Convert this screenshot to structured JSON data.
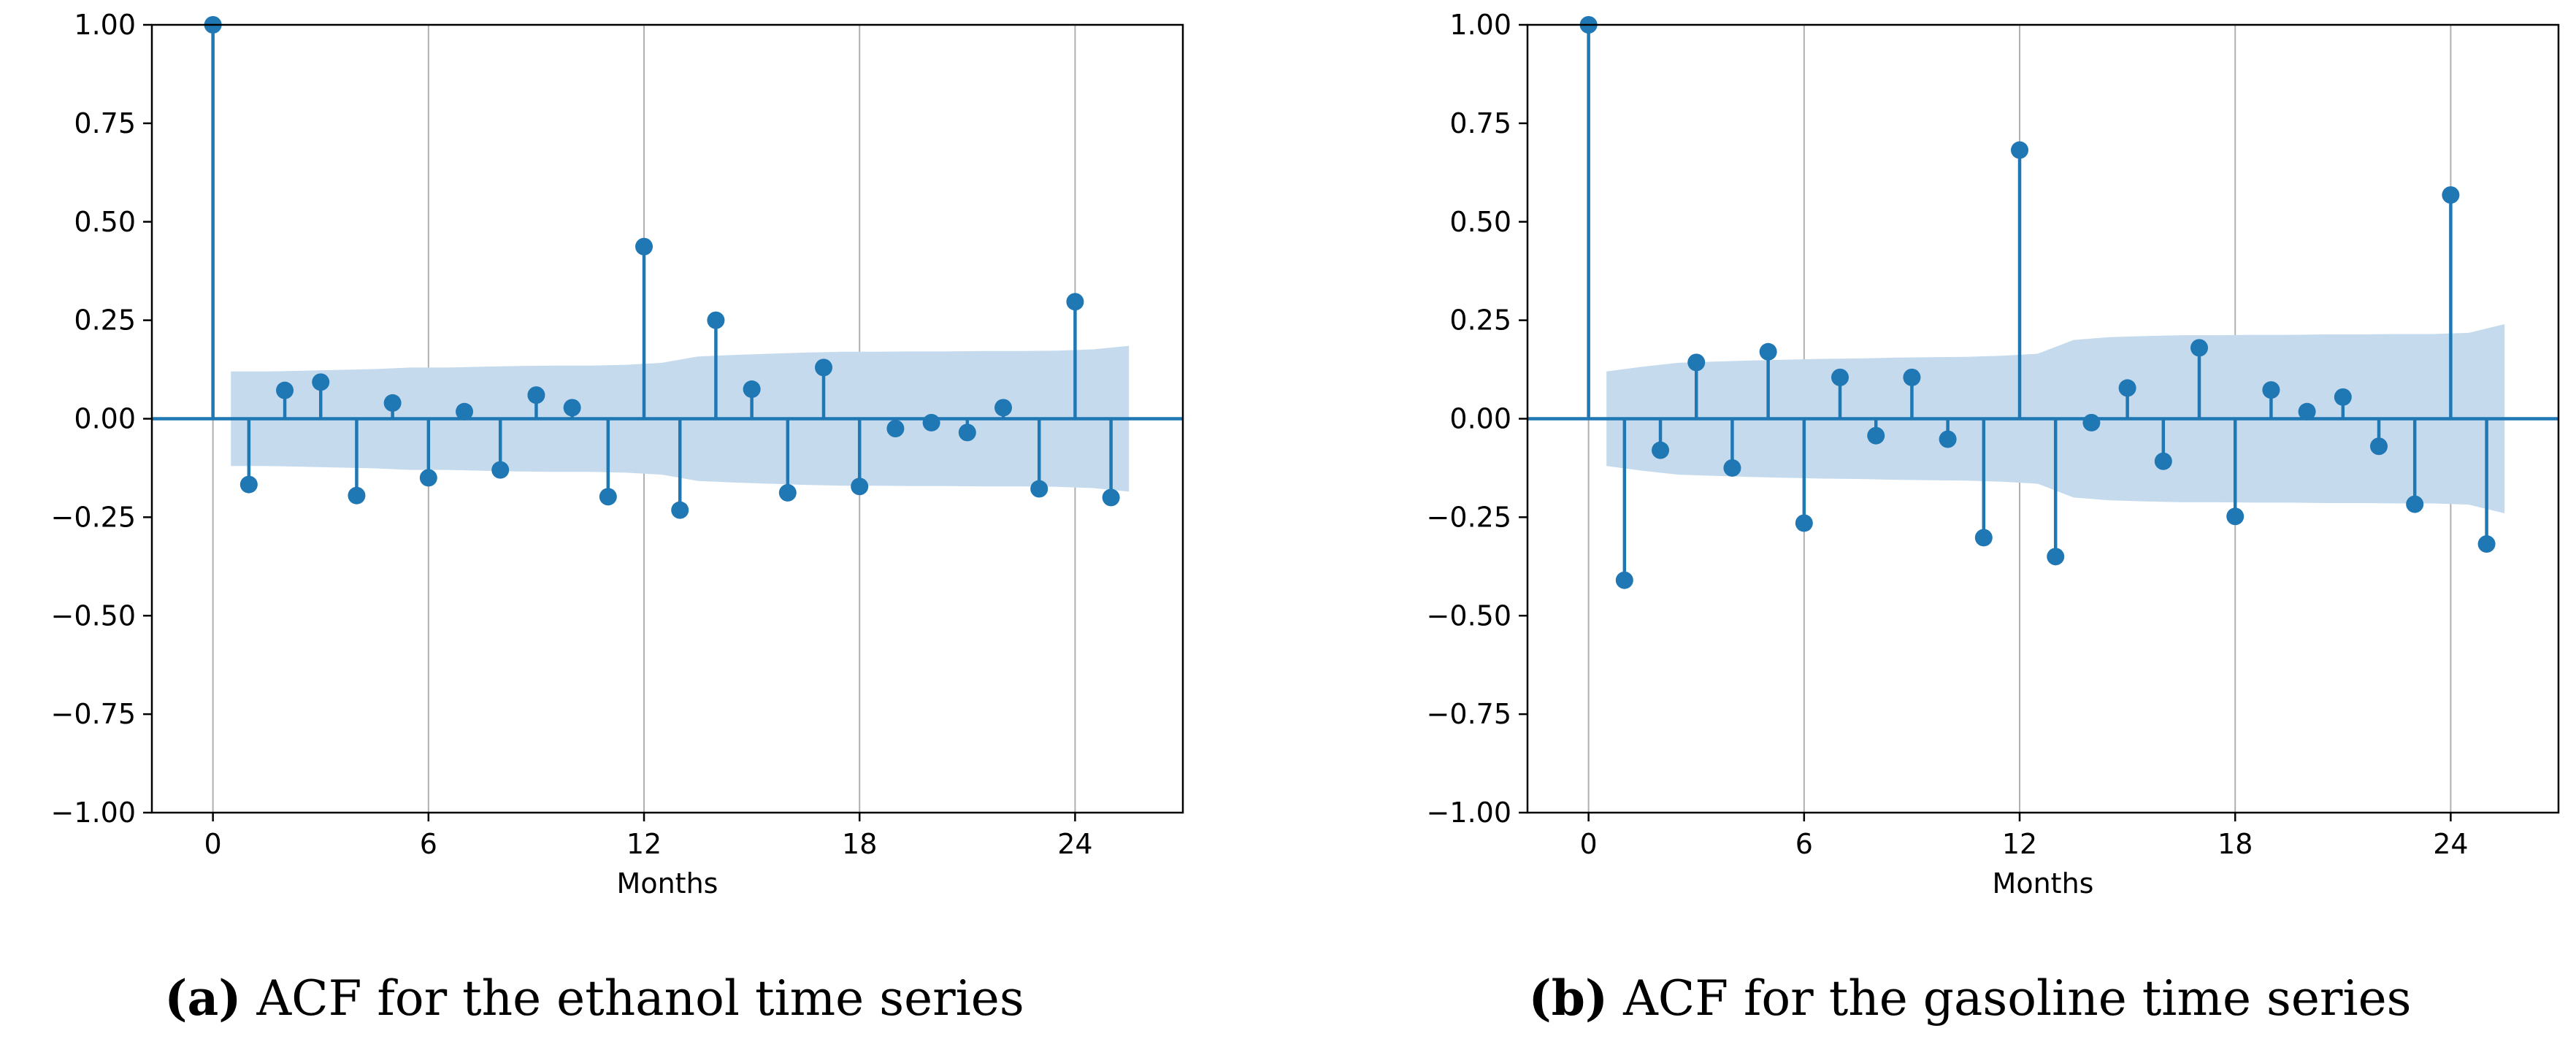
{
  "chart_data": [
    {
      "type": "stem",
      "panel_label": "(a)",
      "caption": "ACF for the ethanol time series",
      "xlabel": "Months",
      "ylabel": "",
      "xlim": [
        -1.7,
        27.0
      ],
      "ylim": [
        -1.0,
        1.0
      ],
      "x_ticks": [
        0,
        6,
        12,
        18,
        24
      ],
      "y_ticks": [
        1.0,
        0.75,
        0.5,
        0.25,
        0.0,
        -0.25,
        -0.5,
        -0.75,
        -1.0
      ],
      "y_tick_labels": [
        "1.00",
        "0.75",
        "0.50",
        "0.25",
        "0.00",
        "−0.25",
        "−0.50",
        "−0.75",
        "−1.00"
      ],
      "grid": "vertical",
      "lags": [
        0,
        1,
        2,
        3,
        4,
        5,
        6,
        7,
        8,
        9,
        10,
        11,
        12,
        13,
        14,
        15,
        16,
        17,
        18,
        19,
        20,
        21,
        22,
        23,
        24,
        25
      ],
      "values": [
        1.0,
        -0.167,
        0.072,
        0.093,
        -0.195,
        0.04,
        -0.15,
        0.018,
        -0.13,
        0.06,
        0.028,
        -0.198,
        0.437,
        -0.232,
        0.25,
        0.075,
        -0.188,
        0.13,
        -0.172,
        -0.025,
        -0.01,
        -0.035,
        0.028,
        -0.178,
        0.297,
        -0.2
      ],
      "confidence_band": {
        "lags": [
          0.5,
          1.5,
          2.5,
          3.5,
          4.5,
          5.5,
          6.5,
          7.5,
          8.5,
          9.5,
          10.5,
          11.5,
          12.5,
          13.5,
          14.5,
          15.5,
          16.5,
          17.5,
          18.5,
          19.5,
          20.5,
          21.5,
          22.5,
          23.5,
          24.5,
          25.5
        ],
        "upper": [
          0.12,
          0.12,
          0.122,
          0.124,
          0.126,
          0.13,
          0.13,
          0.132,
          0.134,
          0.135,
          0.135,
          0.137,
          0.142,
          0.158,
          0.162,
          0.165,
          0.168,
          0.17,
          0.17,
          0.171,
          0.171,
          0.172,
          0.172,
          0.173,
          0.176,
          0.185
        ],
        "lower": [
          -0.12,
          -0.12,
          -0.122,
          -0.124,
          -0.126,
          -0.13,
          -0.13,
          -0.132,
          -0.134,
          -0.135,
          -0.135,
          -0.137,
          -0.142,
          -0.158,
          -0.162,
          -0.165,
          -0.168,
          -0.17,
          -0.17,
          -0.171,
          -0.171,
          -0.172,
          -0.172,
          -0.173,
          -0.176,
          -0.185
        ]
      },
      "colors": {
        "stem": "#1f77b4",
        "band": "#c5dbed",
        "grid": "#b0b0b0"
      }
    },
    {
      "type": "stem",
      "panel_label": "(b)",
      "caption": "ACF for the gasoline time series",
      "xlabel": "Months",
      "ylabel": "",
      "xlim": [
        -1.7,
        27.0
      ],
      "ylim": [
        -1.0,
        1.0
      ],
      "x_ticks": [
        0,
        6,
        12,
        18,
        24
      ],
      "y_ticks": [
        1.0,
        0.75,
        0.5,
        0.25,
        0.0,
        -0.25,
        -0.5,
        -0.75,
        -1.0
      ],
      "y_tick_labels": [
        "1.00",
        "0.75",
        "0.50",
        "0.25",
        "0.00",
        "−0.25",
        "−0.50",
        "−0.75",
        "−1.00"
      ],
      "grid": "vertical",
      "lags": [
        0,
        1,
        2,
        3,
        4,
        5,
        6,
        7,
        8,
        9,
        10,
        11,
        12,
        13,
        14,
        15,
        16,
        17,
        18,
        19,
        20,
        21,
        22,
        23,
        24,
        25
      ],
      "values": [
        1.0,
        -0.41,
        -0.08,
        0.143,
        -0.125,
        0.17,
        -0.265,
        0.105,
        -0.043,
        0.105,
        -0.052,
        -0.302,
        0.682,
        -0.35,
        -0.01,
        0.078,
        -0.108,
        0.18,
        -0.248,
        0.073,
        0.018,
        0.055,
        -0.07,
        -0.217,
        0.568,
        -0.318
      ],
      "confidence_band": {
        "lags": [
          0.5,
          1.5,
          2.5,
          3.5,
          4.5,
          5.5,
          6.5,
          7.5,
          8.5,
          9.5,
          10.5,
          11.5,
          12.5,
          13.5,
          14.5,
          15.5,
          16.5,
          17.5,
          18.5,
          19.5,
          20.5,
          21.5,
          22.5,
          23.5,
          24.5,
          25.5
        ],
        "upper": [
          0.12,
          0.132,
          0.142,
          0.145,
          0.148,
          0.15,
          0.152,
          0.153,
          0.155,
          0.156,
          0.157,
          0.16,
          0.165,
          0.2,
          0.207,
          0.21,
          0.212,
          0.212,
          0.213,
          0.213,
          0.214,
          0.214,
          0.215,
          0.215,
          0.218,
          0.24
        ],
        "lower": [
          -0.12,
          -0.132,
          -0.142,
          -0.145,
          -0.148,
          -0.15,
          -0.152,
          -0.153,
          -0.155,
          -0.156,
          -0.157,
          -0.16,
          -0.165,
          -0.2,
          -0.207,
          -0.21,
          -0.212,
          -0.212,
          -0.213,
          -0.213,
          -0.214,
          -0.214,
          -0.215,
          -0.215,
          -0.218,
          -0.24
        ]
      },
      "colors": {
        "stem": "#1f77b4",
        "band": "#c5dbed",
        "grid": "#b0b0b0"
      }
    }
  ]
}
